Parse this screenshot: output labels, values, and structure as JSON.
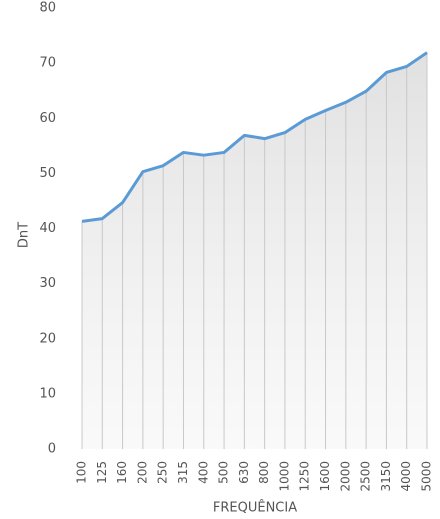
{
  "chart_data": {
    "type": "line",
    "x_label": "FREQUÊNCIA",
    "y_label": "DnT",
    "categories": [
      "100",
      "125",
      "160",
      "200",
      "250",
      "315",
      "400",
      "500",
      "630",
      "800",
      "1000",
      "1250",
      "1600",
      "2000",
      "2500",
      "3150",
      "4000",
      "5000"
    ],
    "values": [
      41.3,
      41.8,
      44.7,
      50.3,
      51.4,
      53.8,
      53.3,
      53.8,
      56.9,
      56.3,
      57.4,
      59.8,
      61.4,
      62.9,
      64.9,
      68.3,
      69.4,
      71.9
    ],
    "color": "#5b9bd5",
    "ylim": [
      0,
      80
    ],
    "yticks": [
      0,
      10,
      20,
      30,
      40,
      50,
      60,
      70,
      80
    ],
    "grid": true,
    "area": true
  }
}
